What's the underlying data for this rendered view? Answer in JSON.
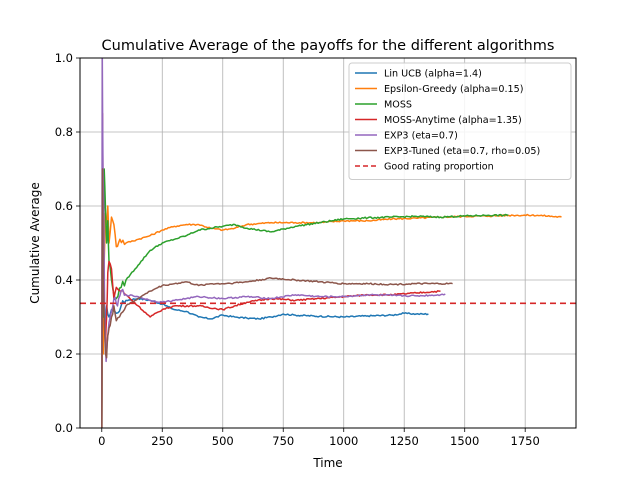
{
  "chart_data": {
    "type": "line",
    "title": "Cumulative Average of the payoffs for the different algorithms",
    "xlabel": "Time",
    "ylabel": "Cumulative Average",
    "xlim": [
      -90,
      1960
    ],
    "ylim": [
      0,
      1.0
    ],
    "xticks": [
      0,
      250,
      500,
      750,
      1000,
      1250,
      1500,
      1750
    ],
    "yticks": [
      0.0,
      0.2,
      0.4,
      0.6,
      0.8,
      1.0
    ],
    "xtick_labels": [
      "0",
      "250",
      "500",
      "750",
      "1000",
      "1250",
      "1500",
      "1750"
    ],
    "ytick_labels": [
      "0.0",
      "0.2",
      "0.4",
      "0.6",
      "0.8",
      "1.0"
    ],
    "grid": true,
    "legend_position": "top-right",
    "series": [
      {
        "name": "Lin UCB (alpha=1.4)",
        "color": "#1f77b4",
        "x": [
          0,
          2,
          5,
          10,
          15,
          20,
          30,
          40,
          60,
          80,
          100,
          150,
          200,
          250,
          300,
          350,
          400,
          450,
          500,
          550,
          600,
          650,
          700,
          750,
          800,
          900,
          1000,
          1100,
          1200,
          1250,
          1300,
          1350
        ],
        "y": [
          0,
          0.5,
          0.25,
          0.3,
          0.28,
          0.33,
          0.3,
          0.32,
          0.31,
          0.33,
          0.345,
          0.35,
          0.345,
          0.335,
          0.32,
          0.315,
          0.3,
          0.295,
          0.305,
          0.3,
          0.297,
          0.295,
          0.3,
          0.308,
          0.305,
          0.302,
          0.3,
          0.303,
          0.305,
          0.31,
          0.308,
          0.308
        ]
      },
      {
        "name": "Epsilon-Greedy (alpha=0.15)",
        "color": "#ff7f0e",
        "x": [
          0,
          3,
          6,
          10,
          15,
          20,
          25,
          30,
          40,
          50,
          60,
          75,
          100,
          150,
          200,
          250,
          300,
          350,
          400,
          450,
          500,
          550,
          600,
          700,
          800,
          900,
          1000,
          1100,
          1200,
          1300,
          1400,
          1500,
          1600,
          1700,
          1800,
          1900
        ],
        "y": [
          0,
          0.6,
          0.2,
          0.45,
          0.58,
          0.55,
          0.6,
          0.5,
          0.57,
          0.55,
          0.49,
          0.51,
          0.5,
          0.51,
          0.52,
          0.535,
          0.545,
          0.55,
          0.55,
          0.54,
          0.535,
          0.54,
          0.55,
          0.555,
          0.555,
          0.555,
          0.56,
          0.56,
          0.565,
          0.567,
          0.57,
          0.572,
          0.573,
          0.575,
          0.575,
          0.57
        ]
      },
      {
        "name": "MOSS",
        "color": "#2ca02c",
        "x": [
          0,
          3,
          6,
          10,
          15,
          20,
          25,
          30,
          40,
          50,
          60,
          80,
          100,
          150,
          200,
          250,
          300,
          350,
          400,
          450,
          500,
          550,
          600,
          700,
          800,
          900,
          1000,
          1100,
          1200,
          1300,
          1400,
          1500,
          1600,
          1680
        ],
        "y": [
          0,
          0.75,
          0.3,
          0.7,
          0.6,
          0.5,
          0.56,
          0.45,
          0.4,
          0.36,
          0.35,
          0.38,
          0.4,
          0.44,
          0.48,
          0.5,
          0.51,
          0.52,
          0.535,
          0.54,
          0.545,
          0.55,
          0.54,
          0.53,
          0.545,
          0.555,
          0.565,
          0.568,
          0.57,
          0.572,
          0.57,
          0.573,
          0.575,
          0.575
        ]
      },
      {
        "name": "MOSS-Anytime (alpha=1.35)",
        "color": "#d62728",
        "x": [
          0,
          3,
          6,
          10,
          15,
          20,
          25,
          30,
          40,
          50,
          60,
          80,
          100,
          150,
          200,
          250,
          300,
          400,
          500,
          600,
          700,
          800,
          900,
          1000,
          1100,
          1200,
          1300,
          1400
        ],
        "y": [
          0,
          0.85,
          0.5,
          0.3,
          0.22,
          0.3,
          0.42,
          0.45,
          0.43,
          0.35,
          0.38,
          0.37,
          0.36,
          0.33,
          0.3,
          0.32,
          0.33,
          0.33,
          0.32,
          0.34,
          0.35,
          0.345,
          0.35,
          0.355,
          0.36,
          0.36,
          0.365,
          0.37
        ]
      },
      {
        "name": "EXP3 (eta=0.7)",
        "color": "#9467bd",
        "x": [
          0,
          2,
          5,
          8,
          12,
          18,
          25,
          35,
          50,
          65,
          80,
          100,
          150,
          200,
          250,
          300,
          350,
          400,
          500,
          600,
          700,
          800,
          900,
          1000,
          1100,
          1200,
          1300,
          1400,
          1420
        ],
        "y": [
          0,
          1.0,
          0.7,
          0.6,
          0.3,
          0.18,
          0.25,
          0.3,
          0.35,
          0.33,
          0.37,
          0.36,
          0.355,
          0.345,
          0.34,
          0.345,
          0.35,
          0.355,
          0.35,
          0.355,
          0.35,
          0.36,
          0.355,
          0.355,
          0.36,
          0.358,
          0.357,
          0.36,
          0.362
        ]
      },
      {
        "name": "EXP3-Tuned (eta=0.7, rho=0.05)",
        "color": "#8c564b",
        "x": [
          0,
          3,
          6,
          10,
          15,
          20,
          25,
          30,
          40,
          50,
          60,
          80,
          100,
          150,
          200,
          250,
          300,
          350,
          400,
          450,
          500,
          600,
          700,
          800,
          900,
          1000,
          1100,
          1200,
          1300,
          1400,
          1450
        ],
        "y": [
          0,
          0.7,
          0.4,
          0.3,
          0.2,
          0.19,
          0.25,
          0.27,
          0.3,
          0.33,
          0.29,
          0.31,
          0.33,
          0.35,
          0.37,
          0.385,
          0.39,
          0.395,
          0.385,
          0.39,
          0.39,
          0.395,
          0.405,
          0.4,
          0.395,
          0.39,
          0.39,
          0.388,
          0.39,
          0.39,
          0.39
        ]
      }
    ],
    "reference_line": {
      "name": "Good rating proportion",
      "color": "#d62728",
      "style": "dashed",
      "y": 0.337
    }
  }
}
